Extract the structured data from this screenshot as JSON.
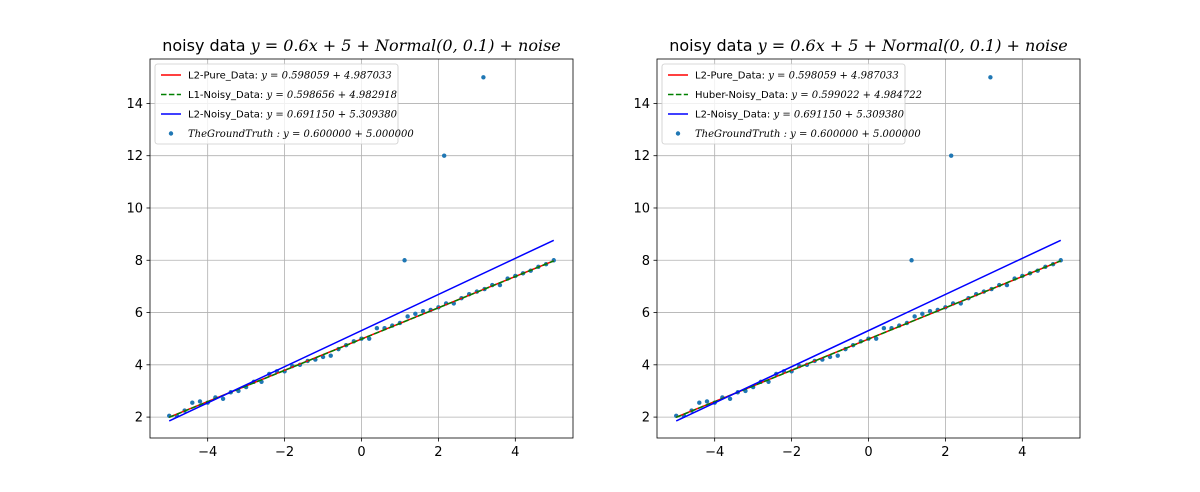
{
  "chart_data": [
    {
      "type": "line",
      "title": {
        "prefix": "noisy data ",
        "math": "y = 0.6x + 5 + Normal(0, 0.1) + noise"
      },
      "xlim": [
        -5.5,
        5.5
      ],
      "ylim": [
        1.2,
        15.7
      ],
      "xticks": [
        -4,
        -2,
        0,
        2,
        4
      ],
      "yticks": [
        2,
        4,
        6,
        8,
        10,
        12,
        14
      ],
      "xtick_labels": [
        "−4",
        "−2",
        "0",
        "2",
        "4"
      ],
      "ytick_labels": [
        "2",
        "4",
        "6",
        "8",
        "10",
        "12",
        "14"
      ],
      "grid": true,
      "legend_position": "top-left",
      "lines": [
        {
          "label": "L2-Pure_Data: ",
          "math": "y = 0.598059 + 4.987033",
          "color": "#ff0000",
          "style": "solid",
          "slope": 0.598059,
          "intercept": 4.987033,
          "x_range": [
            -5,
            5
          ]
        },
        {
          "label": "L1-Noisy_Data: ",
          "math": "y = 0.598656 + 4.982918",
          "color": "#008000",
          "style": "dashed",
          "slope": 0.598656,
          "intercept": 4.982918,
          "x_range": [
            -5,
            5
          ]
        },
        {
          "label": "L2-Noisy_Data: ",
          "math": "y = 0.691150 + 5.309380",
          "color": "#0000ff",
          "style": "solid",
          "slope": 0.69115,
          "intercept": 5.30938,
          "x_range": [
            -5,
            5
          ]
        }
      ],
      "scatter": {
        "label": "",
        "math": "TheGroundTruth : y = 0.600000 + 5.000000",
        "color": "#1f77b4",
        "points": [
          [
            -5.0,
            2.05
          ],
          [
            -4.8,
            2.05
          ],
          [
            -4.6,
            2.25
          ],
          [
            -4.4,
            2.55
          ],
          [
            -4.2,
            2.6
          ],
          [
            -4.0,
            2.55
          ],
          [
            -3.8,
            2.75
          ],
          [
            -3.6,
            2.7
          ],
          [
            -3.4,
            2.95
          ],
          [
            -3.2,
            3.0
          ],
          [
            -3.0,
            3.15
          ],
          [
            -2.8,
            3.35
          ],
          [
            -2.6,
            3.35
          ],
          [
            -2.4,
            3.65
          ],
          [
            -2.2,
            3.75
          ],
          [
            -2.0,
            3.75
          ],
          [
            -1.8,
            3.95
          ],
          [
            -1.6,
            4.0
          ],
          [
            -1.4,
            4.15
          ],
          [
            -1.2,
            4.2
          ],
          [
            -1.0,
            4.3
          ],
          [
            -0.8,
            4.35
          ],
          [
            -0.6,
            4.6
          ],
          [
            -0.4,
            4.75
          ],
          [
            -0.2,
            4.9
          ],
          [
            0.0,
            5.0
          ],
          [
            0.2,
            5.0
          ],
          [
            0.4,
            5.4
          ],
          [
            0.6,
            5.4
          ],
          [
            0.8,
            5.5
          ],
          [
            1.0,
            5.6
          ],
          [
            1.2,
            5.85
          ],
          [
            1.4,
            5.95
          ],
          [
            1.6,
            6.05
          ],
          [
            1.8,
            6.1
          ],
          [
            2.0,
            6.2
          ],
          [
            2.2,
            6.35
          ],
          [
            2.4,
            6.35
          ],
          [
            2.6,
            6.55
          ],
          [
            2.8,
            6.7
          ],
          [
            3.0,
            6.8
          ],
          [
            3.2,
            6.9
          ],
          [
            3.4,
            7.05
          ],
          [
            3.6,
            7.05
          ],
          [
            3.8,
            7.3
          ],
          [
            4.0,
            7.4
          ],
          [
            4.2,
            7.5
          ],
          [
            4.4,
            7.6
          ],
          [
            4.6,
            7.75
          ],
          [
            4.8,
            7.85
          ],
          [
            5.0,
            8.0
          ],
          [
            1.12,
            8.0
          ],
          [
            2.15,
            12.0
          ],
          [
            3.17,
            15.0
          ]
        ]
      }
    },
    {
      "type": "line",
      "title": {
        "prefix": "noisy data ",
        "math": "y = 0.6x + 5 + Normal(0, 0.1) + noise"
      },
      "xlim": [
        -5.5,
        5.5
      ],
      "ylim": [
        1.2,
        15.7
      ],
      "xticks": [
        -4,
        -2,
        0,
        2,
        4
      ],
      "yticks": [
        2,
        4,
        6,
        8,
        10,
        12,
        14
      ],
      "xtick_labels": [
        "−4",
        "−2",
        "0",
        "2",
        "4"
      ],
      "ytick_labels": [
        "2",
        "4",
        "6",
        "8",
        "10",
        "12",
        "14"
      ],
      "grid": true,
      "legend_position": "top-left",
      "lines": [
        {
          "label": "L2-Pure_Data: ",
          "math": "y = 0.598059 + 4.987033",
          "color": "#ff0000",
          "style": "solid",
          "slope": 0.598059,
          "intercept": 4.987033,
          "x_range": [
            -5,
            5
          ]
        },
        {
          "label": "Huber-Noisy_Data: ",
          "math": "y = 0.599022 + 4.984722",
          "color": "#008000",
          "style": "dashed",
          "slope": 0.599022,
          "intercept": 4.984722,
          "x_range": [
            -5,
            5
          ]
        },
        {
          "label": "L2-Noisy_Data: ",
          "math": "y = 0.691150 + 5.309380",
          "color": "#0000ff",
          "style": "solid",
          "slope": 0.69115,
          "intercept": 5.30938,
          "x_range": [
            -5,
            5
          ]
        }
      ],
      "scatter": {
        "label": "",
        "math": "TheGroundTruth : y = 0.600000 + 5.000000",
        "color": "#1f77b4",
        "points": [
          [
            -5.0,
            2.05
          ],
          [
            -4.8,
            2.05
          ],
          [
            -4.6,
            2.25
          ],
          [
            -4.4,
            2.55
          ],
          [
            -4.2,
            2.6
          ],
          [
            -4.0,
            2.55
          ],
          [
            -3.8,
            2.75
          ],
          [
            -3.6,
            2.7
          ],
          [
            -3.4,
            2.95
          ],
          [
            -3.2,
            3.0
          ],
          [
            -3.0,
            3.15
          ],
          [
            -2.8,
            3.35
          ],
          [
            -2.6,
            3.35
          ],
          [
            -2.4,
            3.65
          ],
          [
            -2.2,
            3.75
          ],
          [
            -2.0,
            3.75
          ],
          [
            -1.8,
            3.95
          ],
          [
            -1.6,
            4.0
          ],
          [
            -1.4,
            4.15
          ],
          [
            -1.2,
            4.2
          ],
          [
            -1.0,
            4.3
          ],
          [
            -0.8,
            4.35
          ],
          [
            -0.6,
            4.6
          ],
          [
            -0.4,
            4.75
          ],
          [
            -0.2,
            4.9
          ],
          [
            0.0,
            5.0
          ],
          [
            0.2,
            5.0
          ],
          [
            0.4,
            5.4
          ],
          [
            0.6,
            5.4
          ],
          [
            0.8,
            5.5
          ],
          [
            1.0,
            5.6
          ],
          [
            1.2,
            5.85
          ],
          [
            1.4,
            5.95
          ],
          [
            1.6,
            6.05
          ],
          [
            1.8,
            6.1
          ],
          [
            2.0,
            6.2
          ],
          [
            2.2,
            6.35
          ],
          [
            2.4,
            6.35
          ],
          [
            2.6,
            6.55
          ],
          [
            2.8,
            6.7
          ],
          [
            3.0,
            6.8
          ],
          [
            3.2,
            6.9
          ],
          [
            3.4,
            7.05
          ],
          [
            3.6,
            7.05
          ],
          [
            3.8,
            7.3
          ],
          [
            4.0,
            7.4
          ],
          [
            4.2,
            7.5
          ],
          [
            4.4,
            7.6
          ],
          [
            4.6,
            7.75
          ],
          [
            4.8,
            7.85
          ],
          [
            5.0,
            8.0
          ],
          [
            1.12,
            8.0
          ],
          [
            2.15,
            12.0
          ],
          [
            3.17,
            15.0
          ]
        ]
      }
    }
  ]
}
